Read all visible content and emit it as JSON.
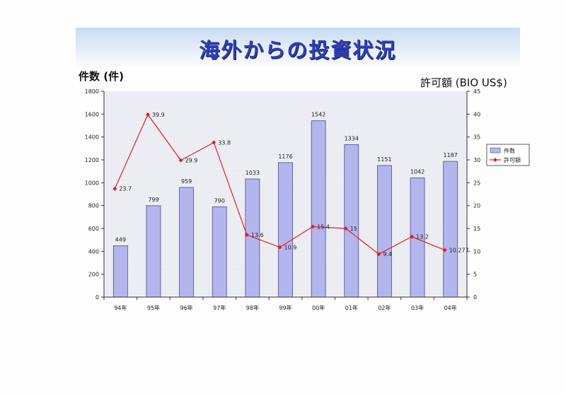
{
  "header": {
    "title": "海外からの投資状況",
    "left_axis_title": "件数 (件)",
    "right_axis_title": "許可額 (BIO US$)"
  },
  "colors": {
    "bar_fill": "#b5b5ee",
    "bar_stroke": "#4a4a8a",
    "line": "#e02020",
    "title": "#2f3db3",
    "plot_bg": "#eceef4"
  },
  "chart_data": {
    "type": "bar",
    "title": "海外からの投資状況",
    "categories": [
      "94年",
      "95年",
      "96年",
      "97年",
      "98年",
      "99年",
      "00年",
      "01年",
      "02年",
      "03年",
      "04年"
    ],
    "ylabel": "件数 (件)",
    "y2label": "許可額 (BIO US$)",
    "ylim": [
      0,
      1800
    ],
    "y_ticks": [
      0,
      200,
      400,
      600,
      800,
      1000,
      1200,
      1400,
      1600,
      1800
    ],
    "y2lim": [
      0,
      45
    ],
    "y2_ticks": [
      0,
      5,
      10,
      15,
      20,
      25,
      30,
      35,
      40,
      45
    ],
    "grid": false,
    "legend_position": "right",
    "series": [
      {
        "name": "件数",
        "type": "bar",
        "axis": "left",
        "values": [
          449,
          799,
          959,
          790,
          1033,
          1176,
          1542,
          1334,
          1151,
          1042,
          1187
        ],
        "labels": [
          "449",
          "799",
          "959",
          "790",
          "1033",
          "1176",
          "1542",
          "1334",
          "1151",
          "1042",
          "1187"
        ]
      },
      {
        "name": "許可額",
        "type": "line",
        "axis": "right",
        "values": [
          23.7,
          39.9,
          29.9,
          33.8,
          13.6,
          10.9,
          15.4,
          15,
          9.4,
          13.2,
          10.277
        ],
        "labels": [
          "23.7",
          "39.9",
          "29.9",
          "33.8",
          "13.6",
          "10.9",
          "15.4",
          "15",
          "9.4",
          "13.2",
          "10.277"
        ]
      }
    ]
  }
}
